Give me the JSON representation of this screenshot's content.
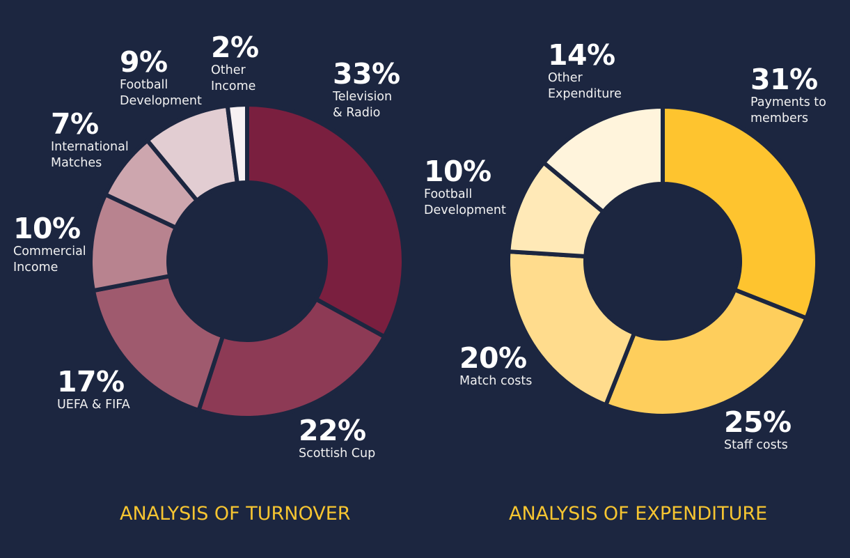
{
  "chart_data": [
    {
      "type": "pie",
      "title": "ANALYSIS OF TURNOVER",
      "slices": [
        {
          "value": 33,
          "percent_label": "33%",
          "label": "Television\n& Radio",
          "color": "#7a1f3f"
        },
        {
          "value": 22,
          "percent_label": "22%",
          "label": "Scottish Cup",
          "color": "#8d3a55"
        },
        {
          "value": 17,
          "percent_label": "17%",
          "label": "UEFA & FIFA",
          "color": "#9f5a6e"
        },
        {
          "value": 10,
          "percent_label": "10%",
          "label": "Commercial\nIncome",
          "color": "#b8838f"
        },
        {
          "value": 7,
          "percent_label": "7%",
          "label": "International\nMatches",
          "color": "#cda6ae"
        },
        {
          "value": 9,
          "percent_label": "9%",
          "label": "Football\nDevelopment",
          "color": "#e2cdd2"
        },
        {
          "value": 2,
          "percent_label": "2%",
          "label": "Other\nIncome",
          "color": "#f7f1f3"
        }
      ]
    },
    {
      "type": "pie",
      "title": "ANALYSIS OF EXPENDITURE",
      "slices": [
        {
          "value": 31,
          "percent_label": "31%",
          "label": "Payments to\nmembers",
          "color": "#fec42f"
        },
        {
          "value": 25,
          "percent_label": "25%",
          "label": "Staff costs",
          "color": "#fece5c"
        },
        {
          "value": 20,
          "percent_label": "20%",
          "label": "Match costs",
          "color": "#ffdc8d"
        },
        {
          "value": 10,
          "percent_label": "10%",
          "label": "Football\nDevelopment",
          "color": "#ffe9b7"
        },
        {
          "value": 14,
          "percent_label": "14%",
          "label": "Other\nExpenditure",
          "color": "#fff4dc"
        }
      ]
    }
  ]
}
